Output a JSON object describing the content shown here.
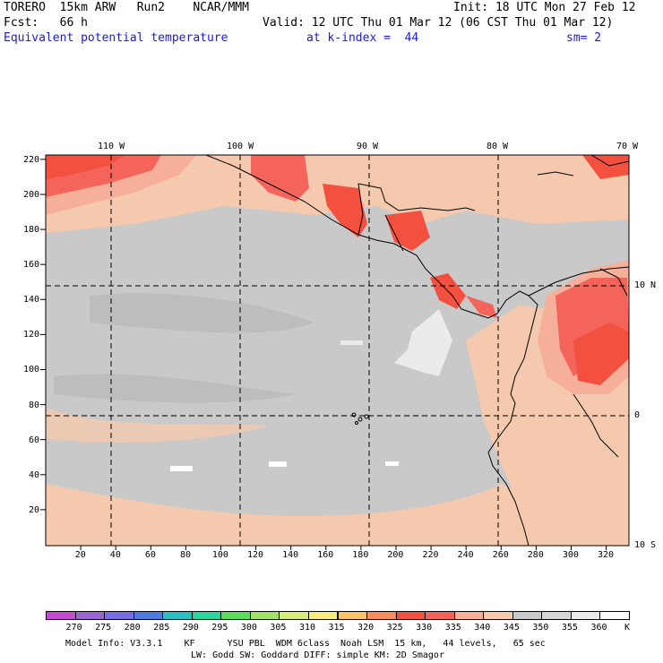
{
  "header": {
    "model": "TORERO  15km ARW   Run2    NCAR/MMM",
    "init": "Init: 18 UTC Mon 27 Feb 12",
    "fcst": "Fcst:   66 h",
    "valid": "Valid: 12 UTC Thu 01 Mar 12 (06 CST Thu 01 Mar 12)",
    "field": "Equivalent potential temperature",
    "level": "at k-index =  44",
    "smooth": "sm= 2"
  },
  "map": {
    "lon_labels": [
      "110 W",
      "100 W",
      "90 W",
      "80 W",
      "70 W"
    ],
    "lat_labels": [
      "10 N",
      "0",
      "10 S"
    ],
    "x_ticks": [
      "20",
      "40",
      "60",
      "80",
      "100",
      "120",
      "140",
      "160",
      "180",
      "200",
      "220",
      "240",
      "260",
      "280",
      "300",
      "320"
    ],
    "y_ticks": [
      "220",
      "200",
      "180",
      "160",
      "140",
      "120",
      "100",
      "80",
      "60",
      "40",
      "20"
    ]
  },
  "colorbar": {
    "values": [
      "270",
      "275",
      "280",
      "285",
      "290",
      "295",
      "300",
      "305",
      "310",
      "315",
      "320",
      "325",
      "330",
      "335",
      "340",
      "345",
      "350",
      "355",
      "360"
    ],
    "unit": "K",
    "colors": [
      "#c34bd0",
      "#9a64d2",
      "#7a6ee6",
      "#4f7ae0",
      "#2bc0c0",
      "#2bd89b",
      "#5bdc5a",
      "#a4e16c",
      "#d8ee7a",
      "#f7ec80",
      "#f9c36a",
      "#f88c5a",
      "#f3503f",
      "#f5645a",
      "#f6b09a",
      "#f4c9ad",
      "#c9c9c9",
      "#d6d6d6",
      "#ebebeb",
      "#ffffff"
    ]
  },
  "footer": {
    "line1": "Model Info: V3.3.1    KF      YSU PBL  WDM 6class  Noah LSM  15 km,   44 levels,   65 sec",
    "line2": "LW: Godd SW: Goddard DIFF: simple KM: 2D Smagor"
  }
}
